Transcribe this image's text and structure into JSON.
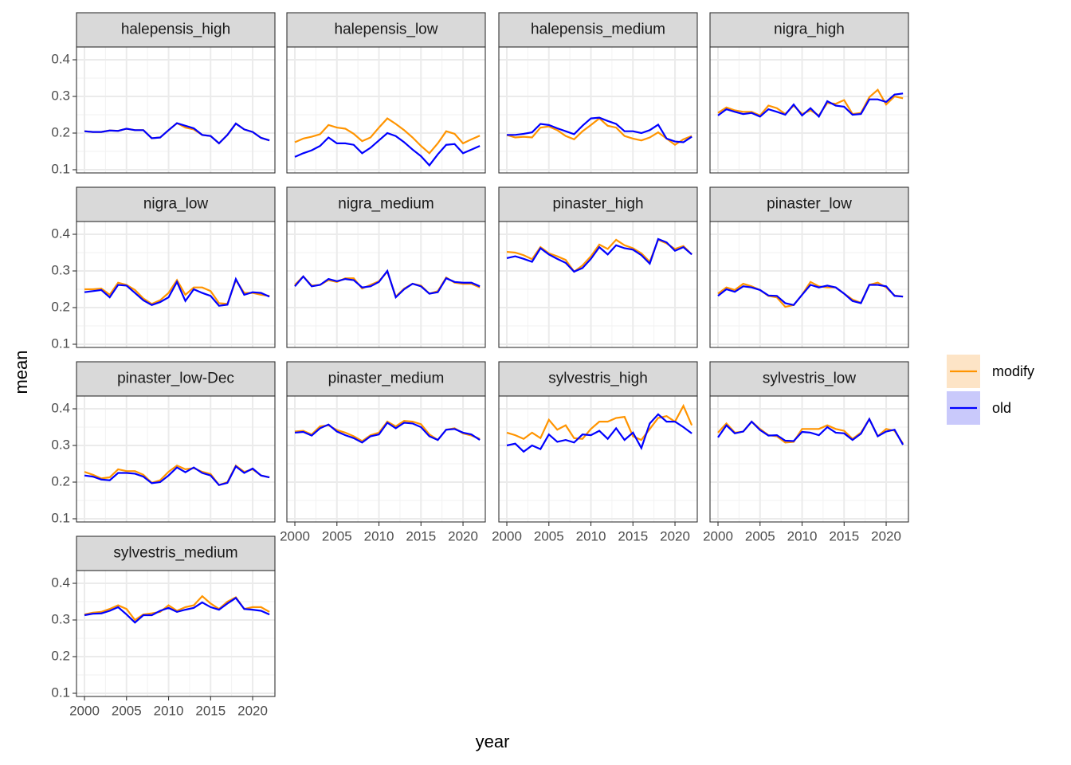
{
  "chart_data": {
    "type": "line",
    "x_label": "year",
    "y_label": "mean",
    "x": [
      2000,
      2001,
      2002,
      2003,
      2004,
      2005,
      2006,
      2007,
      2008,
      2009,
      2010,
      2011,
      2012,
      2013,
      2014,
      2015,
      2016,
      2017,
      2018,
      2019,
      2020,
      2021,
      2022
    ],
    "xlim": [
      1999.05,
      2022.65
    ],
    "xticks": [
      2000,
      2005,
      2010,
      2015,
      2020
    ],
    "ylim": [
      0.0913,
      0.4348
    ],
    "yticks": [
      0.1,
      0.2,
      0.3,
      0.4
    ],
    "grid": true,
    "series": [
      {
        "name": "modify",
        "color": "#ff9400",
        "fill": "#fde4c6"
      },
      {
        "name": "old",
        "color": "#0000ff",
        "fill": "#c9c9fb"
      }
    ],
    "panels": [
      {
        "title": "halepensis_high",
        "series": [
          {
            "values": [
              0.205,
              0.203,
              0.203,
              0.207,
              0.206,
              0.212,
              0.208,
              0.208,
              0.186,
              0.188,
              0.208,
              0.227,
              0.215,
              0.21,
              0.195,
              0.192,
              0.172,
              0.195,
              0.226,
              0.21,
              0.203,
              0.187,
              0.18
            ]
          },
          {
            "values": [
              0.205,
              0.203,
              0.203,
              0.207,
              0.206,
              0.212,
              0.208,
              0.208,
              0.186,
              0.188,
              0.208,
              0.227,
              0.22,
              0.213,
              0.195,
              0.192,
              0.172,
              0.195,
              0.226,
              0.21,
              0.203,
              0.187,
              0.18
            ]
          }
        ]
      },
      {
        "title": "halepensis_low",
        "series": [
          {
            "values": [
              0.175,
              0.185,
              0.19,
              0.197,
              0.222,
              0.215,
              0.212,
              0.198,
              0.178,
              0.188,
              0.215,
              0.24,
              0.225,
              0.208,
              0.188,
              0.165,
              0.145,
              0.172,
              0.205,
              0.198,
              0.172,
              0.183,
              0.193
            ]
          },
          {
            "values": [
              0.135,
              0.145,
              0.153,
              0.165,
              0.188,
              0.172,
              0.172,
              0.168,
              0.145,
              0.16,
              0.18,
              0.2,
              0.192,
              0.175,
              0.155,
              0.137,
              0.112,
              0.142,
              0.168,
              0.17,
              0.145,
              0.155,
              0.165
            ]
          }
        ]
      },
      {
        "title": "halepensis_medium",
        "series": [
          {
            "values": [
              0.195,
              0.188,
              0.19,
              0.188,
              0.215,
              0.218,
              0.208,
              0.192,
              0.183,
              0.205,
              0.222,
              0.24,
              0.22,
              0.215,
              0.192,
              0.185,
              0.18,
              0.188,
              0.202,
              0.185,
              0.168,
              0.183,
              0.192
            ]
          },
          {
            "values": [
              0.195,
              0.195,
              0.198,
              0.202,
              0.225,
              0.222,
              0.213,
              0.205,
              0.197,
              0.22,
              0.24,
              0.242,
              0.233,
              0.225,
              0.205,
              0.205,
              0.2,
              0.208,
              0.223,
              0.185,
              0.177,
              0.175,
              0.19
            ]
          }
        ]
      },
      {
        "title": "nigra_high",
        "series": [
          {
            "values": [
              0.255,
              0.27,
              0.262,
              0.258,
              0.258,
              0.248,
              0.275,
              0.268,
              0.252,
              0.275,
              0.252,
              0.262,
              0.248,
              0.282,
              0.28,
              0.29,
              0.252,
              0.255,
              0.298,
              0.318,
              0.278,
              0.3,
              0.295
            ]
          },
          {
            "values": [
              0.248,
              0.265,
              0.258,
              0.252,
              0.255,
              0.245,
              0.265,
              0.258,
              0.25,
              0.278,
              0.248,
              0.268,
              0.245,
              0.287,
              0.275,
              0.272,
              0.25,
              0.252,
              0.292,
              0.292,
              0.285,
              0.305,
              0.308
            ]
          }
        ]
      },
      {
        "title": "nigra_low",
        "series": [
          {
            "values": [
              0.25,
              0.25,
              0.252,
              0.235,
              0.268,
              0.262,
              0.248,
              0.225,
              0.21,
              0.22,
              0.24,
              0.275,
              0.235,
              0.255,
              0.255,
              0.245,
              0.212,
              0.21,
              0.275,
              0.24,
              0.24,
              0.235,
              0.232
            ]
          },
          {
            "values": [
              0.242,
              0.245,
              0.248,
              0.228,
              0.262,
              0.26,
              0.24,
              0.22,
              0.207,
              0.215,
              0.228,
              0.27,
              0.218,
              0.25,
              0.24,
              0.232,
              0.205,
              0.208,
              0.278,
              0.235,
              0.242,
              0.24,
              0.23
            ]
          }
        ]
      },
      {
        "title": "nigra_medium",
        "series": [
          {
            "values": [
              0.262,
              0.285,
              0.26,
              0.262,
              0.275,
              0.27,
              0.28,
              0.28,
              0.252,
              0.262,
              0.272,
              0.298,
              0.23,
              0.252,
              0.265,
              0.26,
              0.238,
              0.245,
              0.282,
              0.268,
              0.265,
              0.265,
              0.255
            ]
          },
          {
            "values": [
              0.258,
              0.285,
              0.258,
              0.262,
              0.278,
              0.272,
              0.278,
              0.275,
              0.255,
              0.258,
              0.27,
              0.3,
              0.228,
              0.25,
              0.265,
              0.258,
              0.238,
              0.242,
              0.28,
              0.27,
              0.268,
              0.268,
              0.258
            ]
          }
        ]
      },
      {
        "title": "pinaster_high",
        "series": [
          {
            "values": [
              0.352,
              0.35,
              0.343,
              0.332,
              0.365,
              0.348,
              0.34,
              0.33,
              0.298,
              0.315,
              0.34,
              0.372,
              0.36,
              0.385,
              0.37,
              0.362,
              0.348,
              0.325,
              0.385,
              0.375,
              0.36,
              0.368,
              0.345
            ]
          },
          {
            "values": [
              0.335,
              0.34,
              0.333,
              0.325,
              0.362,
              0.345,
              0.333,
              0.322,
              0.298,
              0.308,
              0.333,
              0.365,
              0.345,
              0.37,
              0.362,
              0.358,
              0.343,
              0.32,
              0.387,
              0.378,
              0.355,
              0.365,
              0.345
            ]
          }
        ]
      },
      {
        "title": "pinaster_low",
        "series": [
          {
            "values": [
              0.238,
              0.255,
              0.248,
              0.265,
              0.258,
              0.248,
              0.232,
              0.228,
              0.202,
              0.207,
              0.235,
              0.27,
              0.258,
              0.255,
              0.255,
              0.238,
              0.222,
              0.213,
              0.262,
              0.268,
              0.255,
              0.233,
              0.23
            ]
          },
          {
            "values": [
              0.232,
              0.25,
              0.243,
              0.258,
              0.255,
              0.248,
              0.233,
              0.232,
              0.212,
              0.207,
              0.235,
              0.262,
              0.255,
              0.26,
              0.255,
              0.238,
              0.218,
              0.212,
              0.262,
              0.262,
              0.258,
              0.232,
              0.23
            ]
          }
        ]
      },
      {
        "title": "pinaster_low-Dec",
        "series": [
          {
            "values": [
              0.228,
              0.22,
              0.21,
              0.213,
              0.235,
              0.23,
              0.23,
              0.22,
              0.198,
              0.205,
              0.228,
              0.245,
              0.235,
              0.238,
              0.228,
              0.222,
              0.192,
              0.2,
              0.245,
              0.228,
              0.235,
              0.218,
              0.213
            ]
          },
          {
            "values": [
              0.218,
              0.215,
              0.207,
              0.205,
              0.225,
              0.225,
              0.223,
              0.215,
              0.197,
              0.2,
              0.218,
              0.24,
              0.227,
              0.24,
              0.225,
              0.218,
              0.192,
              0.198,
              0.243,
              0.225,
              0.237,
              0.218,
              0.213
            ]
          }
        ]
      },
      {
        "title": "pinaster_medium",
        "series": [
          {
            "values": [
              0.338,
              0.34,
              0.33,
              0.352,
              0.355,
              0.342,
              0.335,
              0.325,
              0.312,
              0.328,
              0.335,
              0.365,
              0.352,
              0.367,
              0.365,
              0.358,
              0.33,
              0.315,
              0.343,
              0.347,
              0.333,
              0.327,
              0.318
            ]
          },
          {
            "values": [
              0.335,
              0.337,
              0.327,
              0.347,
              0.357,
              0.338,
              0.328,
              0.32,
              0.308,
              0.325,
              0.33,
              0.362,
              0.347,
              0.362,
              0.36,
              0.35,
              0.325,
              0.315,
              0.343,
              0.345,
              0.335,
              0.33,
              0.315
            ]
          }
        ]
      },
      {
        "title": "sylvestris_high",
        "series": [
          {
            "values": [
              0.335,
              0.328,
              0.318,
              0.335,
              0.32,
              0.37,
              0.343,
              0.355,
              0.32,
              0.318,
              0.345,
              0.365,
              0.365,
              0.375,
              0.378,
              0.325,
              0.315,
              0.345,
              0.375,
              0.38,
              0.365,
              0.408,
              0.355
            ]
          },
          {
            "values": [
              0.3,
              0.305,
              0.283,
              0.3,
              0.29,
              0.33,
              0.31,
              0.315,
              0.308,
              0.33,
              0.328,
              0.34,
              0.318,
              0.347,
              0.315,
              0.335,
              0.293,
              0.36,
              0.385,
              0.365,
              0.365,
              0.35,
              0.333
            ]
          }
        ]
      },
      {
        "title": "sylvestris_low",
        "series": [
          {
            "values": [
              0.335,
              0.36,
              0.335,
              0.338,
              0.365,
              0.345,
              0.328,
              0.325,
              0.308,
              0.31,
              0.345,
              0.345,
              0.345,
              0.355,
              0.345,
              0.34,
              0.318,
              0.335,
              0.372,
              0.325,
              0.345,
              0.34,
              0.305
            ]
          },
          {
            "values": [
              0.322,
              0.355,
              0.333,
              0.338,
              0.365,
              0.342,
              0.327,
              0.328,
              0.313,
              0.312,
              0.337,
              0.335,
              0.328,
              0.35,
              0.335,
              0.333,
              0.315,
              0.332,
              0.372,
              0.325,
              0.338,
              0.343,
              0.302
            ]
          }
        ]
      },
      {
        "title": "sylvestris_medium",
        "series": [
          {
            "values": [
              0.315,
              0.32,
              0.322,
              0.33,
              0.34,
              0.33,
              0.3,
              0.315,
              0.318,
              0.322,
              0.34,
              0.325,
              0.335,
              0.34,
              0.365,
              0.345,
              0.33,
              0.35,
              0.362,
              0.33,
              0.335,
              0.335,
              0.322
            ]
          },
          {
            "values": [
              0.313,
              0.317,
              0.318,
              0.325,
              0.335,
              0.315,
              0.293,
              0.313,
              0.313,
              0.325,
              0.333,
              0.322,
              0.328,
              0.333,
              0.348,
              0.335,
              0.328,
              0.345,
              0.36,
              0.33,
              0.328,
              0.325,
              0.315
            ]
          }
        ]
      }
    ]
  }
}
